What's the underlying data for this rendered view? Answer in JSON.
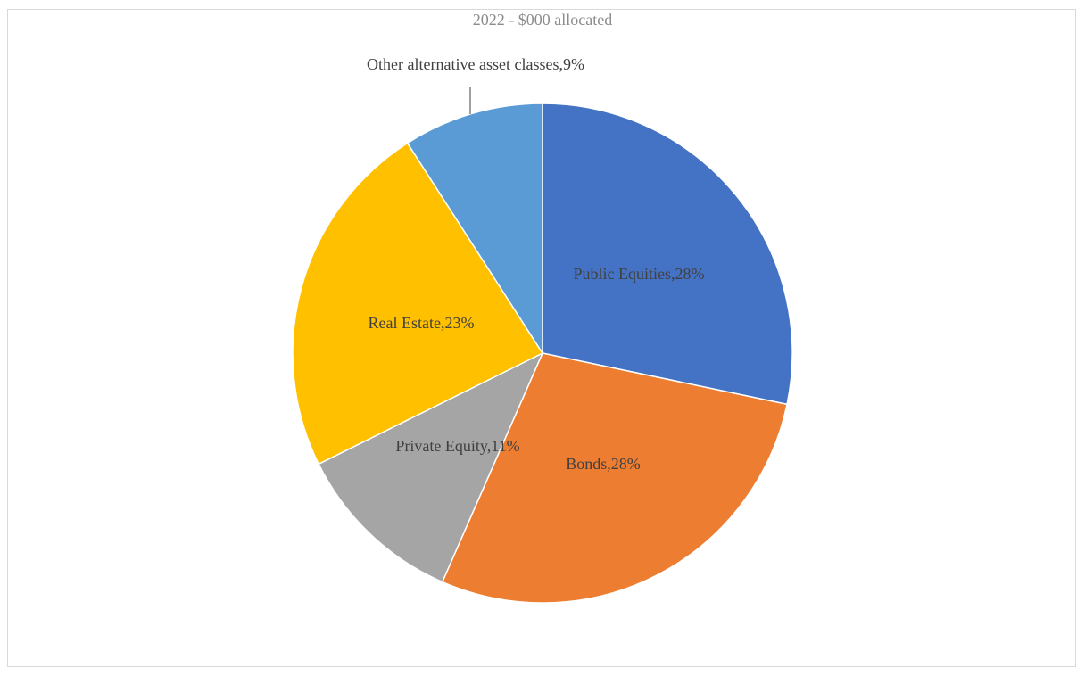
{
  "chart_data": {
    "type": "pie",
    "title": "2022 - $000 allocated",
    "categories": [
      "Public Equities",
      "Bonds",
      "Private Equity",
      "Real Estate",
      "Other alternative asset classes"
    ],
    "values": [
      28,
      28,
      11,
      23,
      9
    ],
    "value_labels": [
      "Public Equities,28%",
      "Bonds,28%",
      "Private Equity,11%",
      "Real Estate,23%",
      "Other alternative asset classes,9%"
    ],
    "colors": [
      "#4472c4",
      "#ed7d31",
      "#a5a5a5",
      "#ffc000",
      "#5b9bd5"
    ]
  }
}
